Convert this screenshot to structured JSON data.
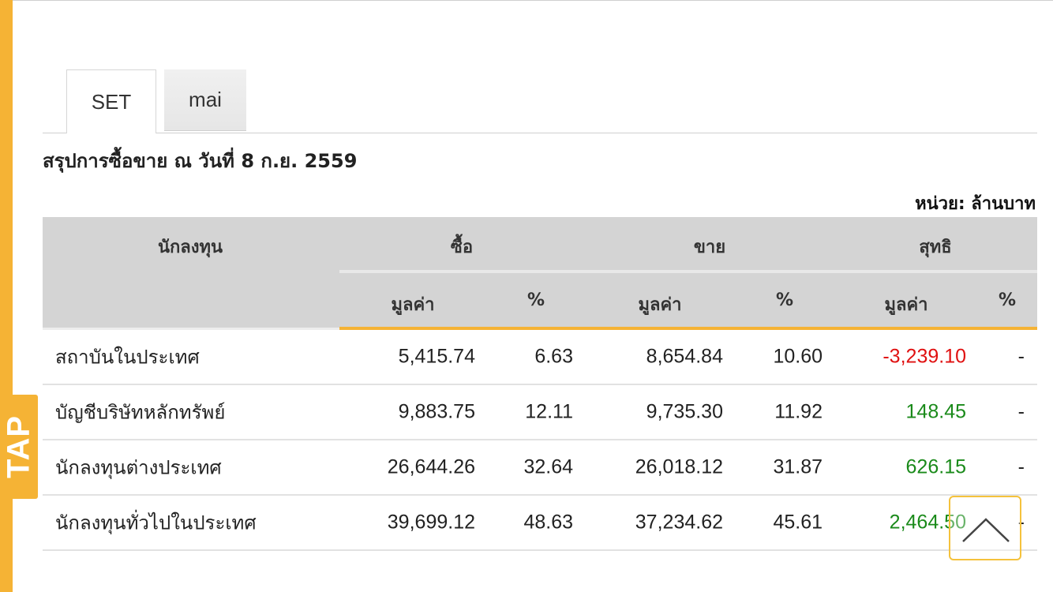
{
  "tap_label": "TAP",
  "tabs": [
    {
      "label": "SET",
      "active": true
    },
    {
      "label": "mai",
      "active": false
    }
  ],
  "summary_title": "สรุปการซื้อขาย ณ วันที่ 8 ก.ย. 2559",
  "unit_label": "หน่วย: ล้านบาท",
  "table": {
    "headers": {
      "investor": "นักลงทุน",
      "buy": "ซื้อ",
      "sell": "ขาย",
      "net": "สุทธิ",
      "value": "มูลค่า",
      "percent": "%"
    },
    "rows": [
      {
        "name": "สถาบันในประเทศ",
        "buy_value": "5,415.74",
        "buy_pct": "6.63",
        "sell_value": "8,654.84",
        "sell_pct": "10.60",
        "net_value": "-3,239.10",
        "net_pct": "-"
      },
      {
        "name": "บัญชีบริษัทหลักทรัพย์",
        "buy_value": "9,883.75",
        "buy_pct": "12.11",
        "sell_value": "9,735.30",
        "sell_pct": "11.92",
        "net_value": "148.45",
        "net_pct": "-"
      },
      {
        "name": "นักลงทุนต่างประเทศ",
        "buy_value": "26,644.26",
        "buy_pct": "32.64",
        "sell_value": "26,018.12",
        "sell_pct": "31.87",
        "net_value": "626.15",
        "net_pct": "-"
      },
      {
        "name": "นักลงทุนทั่วไปในประเทศ",
        "buy_value": "39,699.12",
        "buy_pct": "48.63",
        "sell_value": "37,234.62",
        "sell_pct": "45.61",
        "net_value": "2,464.50",
        "net_pct": "-"
      }
    ]
  },
  "colors": {
    "accent": "#f5b335",
    "negative": "#e01010",
    "positive": "#1a8a1a",
    "header_bg": "#d4d4d4"
  },
  "icons": {
    "scroll_top": "chevron-up-icon"
  }
}
